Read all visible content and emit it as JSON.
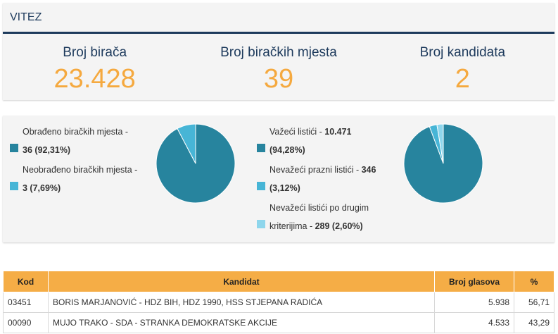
{
  "header": {
    "title": "VITEZ"
  },
  "stats": [
    {
      "label": "Broj birača",
      "value": "23.428"
    },
    {
      "label": "Broj biračkih mjesta",
      "value": "39"
    },
    {
      "label": "Broj kandidata",
      "value": "2"
    }
  ],
  "colors": {
    "dark_blue": "#1d3a5c",
    "orange": "#f5a93f",
    "teal": "#27849e",
    "light_blue": "#47b5d6",
    "pale_blue": "#8ed6ec"
  },
  "chart_data": [
    {
      "type": "pie",
      "slices": [
        {
          "label": "Obrađeno biračkih mjesta - ",
          "value_text": "36 (92,31%)",
          "value": 36,
          "percent": 92.31,
          "color": "#27849e"
        },
        {
          "label": "Neobrađeno biračkih mjesta - ",
          "value_text": "3 (7,69%)",
          "value": 3,
          "percent": 7.69,
          "color": "#47b5d6"
        }
      ]
    },
    {
      "type": "pie",
      "slices": [
        {
          "label": "Važeći listići - ",
          "value_text": "10.471 (94,28%)",
          "value": 10471,
          "percent": 94.28,
          "color": "#27849e"
        },
        {
          "label": "Nevažeći prazni listići - ",
          "value_text": "346 (3,12%)",
          "value": 346,
          "percent": 3.12,
          "color": "#47b5d6"
        },
        {
          "label": "Nevažeći listići po drugim kriterijima - ",
          "value_text": "289 (2,60%)",
          "value": 289,
          "percent": 2.6,
          "color": "#8ed6ec"
        }
      ]
    }
  ],
  "table": {
    "headers": [
      "Kod",
      "Kandidat",
      "Broj glasova",
      "%"
    ],
    "rows": [
      {
        "code": "03451",
        "candidate": "BORIS MARJANOVIĆ - HDZ BIH, HDZ 1990, HSS STJEPANA RADIĆA",
        "votes": "5.938",
        "percent": "56,71"
      },
      {
        "code": "00090",
        "candidate": "MUJO TRAKO - SDA - STRANKA DEMOKRATSKE AKCIJE",
        "votes": "4.533",
        "percent": "43,29"
      }
    ]
  }
}
